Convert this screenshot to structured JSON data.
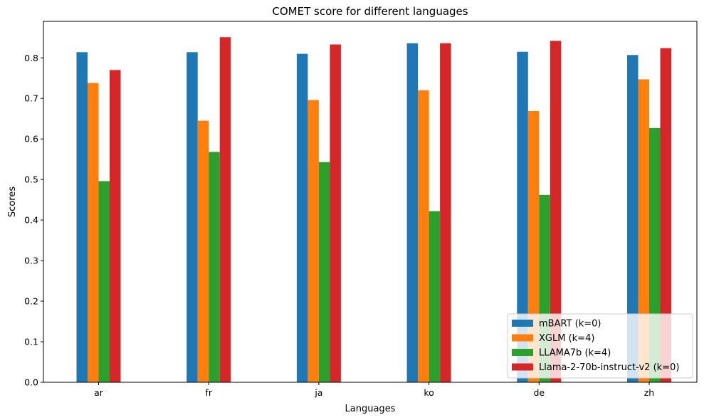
{
  "chart_data": {
    "type": "bar",
    "title": "COMET score for different languages",
    "xlabel": "Languages",
    "ylabel": "Scores",
    "categories": [
      "ar",
      "fr",
      "ja",
      "ko",
      "de",
      "zh"
    ],
    "ylim": [
      0,
      0.89
    ],
    "yticks": [
      0.0,
      0.1,
      0.2,
      0.3,
      0.4,
      0.5,
      0.6,
      0.7,
      0.8
    ],
    "ytick_labels": [
      "0.0",
      "0.1",
      "0.2",
      "0.3",
      "0.4",
      "0.5",
      "0.6",
      "0.7",
      "0.8"
    ],
    "grid": false,
    "legend_position": "bottom-right",
    "series": [
      {
        "name": "mBART (k=0)",
        "color": "#1f77b4",
        "values": [
          0.814,
          0.814,
          0.81,
          0.836,
          0.815,
          0.807
        ]
      },
      {
        "name": "XGLM (k=4)",
        "color": "#ff7f0e",
        "values": [
          0.738,
          0.645,
          0.696,
          0.72,
          0.669,
          0.747
        ]
      },
      {
        "name": "LLAMA7b (k=4)",
        "color": "#2ca02c",
        "values": [
          0.496,
          0.568,
          0.543,
          0.422,
          0.462,
          0.627
        ]
      },
      {
        "name": "Llama-2-70b-instruct-v2 (k=0)",
        "color": "#d62728",
        "values": [
          0.77,
          0.851,
          0.833,
          0.836,
          0.842,
          0.824
        ]
      }
    ]
  }
}
